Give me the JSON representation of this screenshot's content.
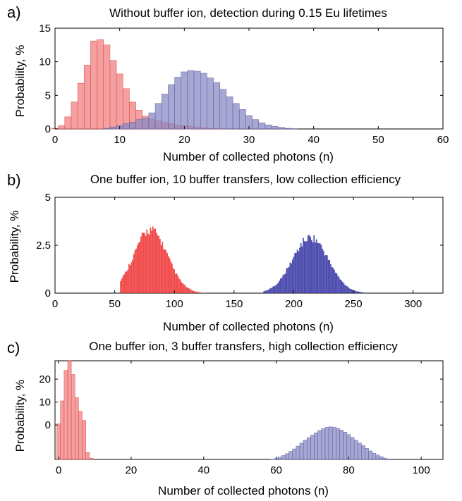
{
  "chart_data": [
    {
      "type": "bar",
      "panel_label": "a)",
      "title": "Without buffer ion, detection during 0.15 Eu lifetimes",
      "xlabel": "Number of collected photons (n)",
      "ylabel": "Probability, %",
      "xlim": [
        0,
        60
      ],
      "ylim": [
        0,
        15
      ],
      "xticks": [
        "0",
        "10",
        "20",
        "30",
        "40",
        "50",
        "60"
      ],
      "yticks": [
        "0",
        "5",
        "10",
        "15"
      ],
      "colors": {
        "bright": "#f08080",
        "dark": "#8a8ac4"
      },
      "series": [
        {
          "x": [
            0,
            1,
            2,
            3,
            4,
            5,
            6,
            7,
            8,
            9,
            10,
            11,
            12,
            13,
            14,
            15,
            16,
            17,
            18,
            19,
            20,
            21,
            22,
            23,
            24,
            25,
            26
          ],
          "values": [
            0.1,
            0.5,
            1.8,
            4.0,
            6.8,
            9.5,
            13.1,
            13.3,
            12.5,
            10.2,
            8.2,
            6.0,
            4.0,
            2.8,
            1.9,
            1.5,
            1.2,
            1.0,
            0.8,
            0.6,
            0.5,
            0.4,
            0.3,
            0.2,
            0.1,
            0.1,
            0.05
          ]
        },
        {
          "x": [
            8,
            9,
            10,
            11,
            12,
            13,
            14,
            15,
            16,
            17,
            18,
            19,
            20,
            21,
            22,
            23,
            24,
            25,
            26,
            27,
            28,
            29,
            30,
            31,
            32,
            33,
            34,
            35,
            36,
            37
          ],
          "values": [
            0.1,
            0.3,
            0.5,
            0.8,
            1.0,
            1.4,
            1.6,
            2.4,
            3.8,
            5.2,
            6.6,
            7.7,
            8.5,
            8.7,
            8.6,
            8.3,
            7.6,
            6.9,
            5.9,
            4.8,
            3.8,
            2.9,
            2.0,
            1.4,
            0.9,
            0.6,
            0.4,
            0.25,
            0.1,
            0.05
          ]
        }
      ]
    },
    {
      "type": "bar",
      "panel_label": "b)",
      "title": "One buffer ion, 10 buffer transfers, low collection efficiency",
      "xlabel": "Number of collected photons (n)",
      "ylabel": "Probability, %",
      "xlim": [
        0,
        325
      ],
      "ylim": [
        0,
        5
      ],
      "xticks": [
        "0",
        "50",
        "100",
        "150",
        "200",
        "250",
        "300"
      ],
      "yticks": [
        "0",
        "2.5",
        "5"
      ],
      "colors": {
        "bright": "#f03838",
        "dark": "#3a3aa6"
      },
      "series": [
        {
          "center": 80,
          "sigma": 14,
          "peak": 3.3,
          "range": [
            55,
            125
          ]
        },
        {
          "center": 214,
          "sigma": 15,
          "peak": 2.9,
          "range": [
            175,
            258
          ]
        }
      ]
    },
    {
      "type": "bar",
      "panel_label": "c)",
      "title": "One buffer ion, 3 buffer transfers, high collection efficiency",
      "xlabel": "Number of collected photons (n)",
      "ylabel": "Probability, %",
      "xlim": [
        -1,
        106
      ],
      "ylim": [
        -15,
        28
      ],
      "xticks": [
        "0",
        "20",
        "40",
        "60",
        "80",
        "100"
      ],
      "yticks": [
        "0",
        "10",
        "20"
      ],
      "colors": {
        "bright": "#f08080",
        "dark": "#8a8ac4"
      },
      "series": [
        {
          "x": [
            0,
            1,
            2,
            3,
            4,
            5,
            6,
            7,
            8,
            9
          ],
          "values": [
            0.5,
            10.5,
            23.8,
            28.0,
            22.0,
            12.0,
            6.0,
            2.0,
            -12.0,
            -14.5
          ]
        },
        {
          "x": [
            59,
            60,
            61,
            62,
            63,
            64,
            65,
            66,
            67,
            68,
            69,
            70,
            71,
            72,
            73,
            74,
            75,
            76,
            77,
            78,
            79,
            80,
            81,
            82,
            83,
            84,
            85,
            86,
            87,
            88,
            89,
            90,
            91
          ],
          "values": [
            -14.9,
            -14.6,
            -14.0,
            -13.3,
            -12.5,
            -11.5,
            -10.4,
            -9.2,
            -7.9,
            -6.6,
            -5.5,
            -4.4,
            -3.4,
            -2.4,
            -1.6,
            -1.0,
            -0.8,
            -1.0,
            -1.5,
            -2.2,
            -3.1,
            -4.2,
            -5.4,
            -6.6,
            -7.8,
            -9.0,
            -10.2,
            -11.3,
            -12.3,
            -13.1,
            -13.8,
            -14.4,
            -14.8
          ]
        }
      ]
    }
  ]
}
